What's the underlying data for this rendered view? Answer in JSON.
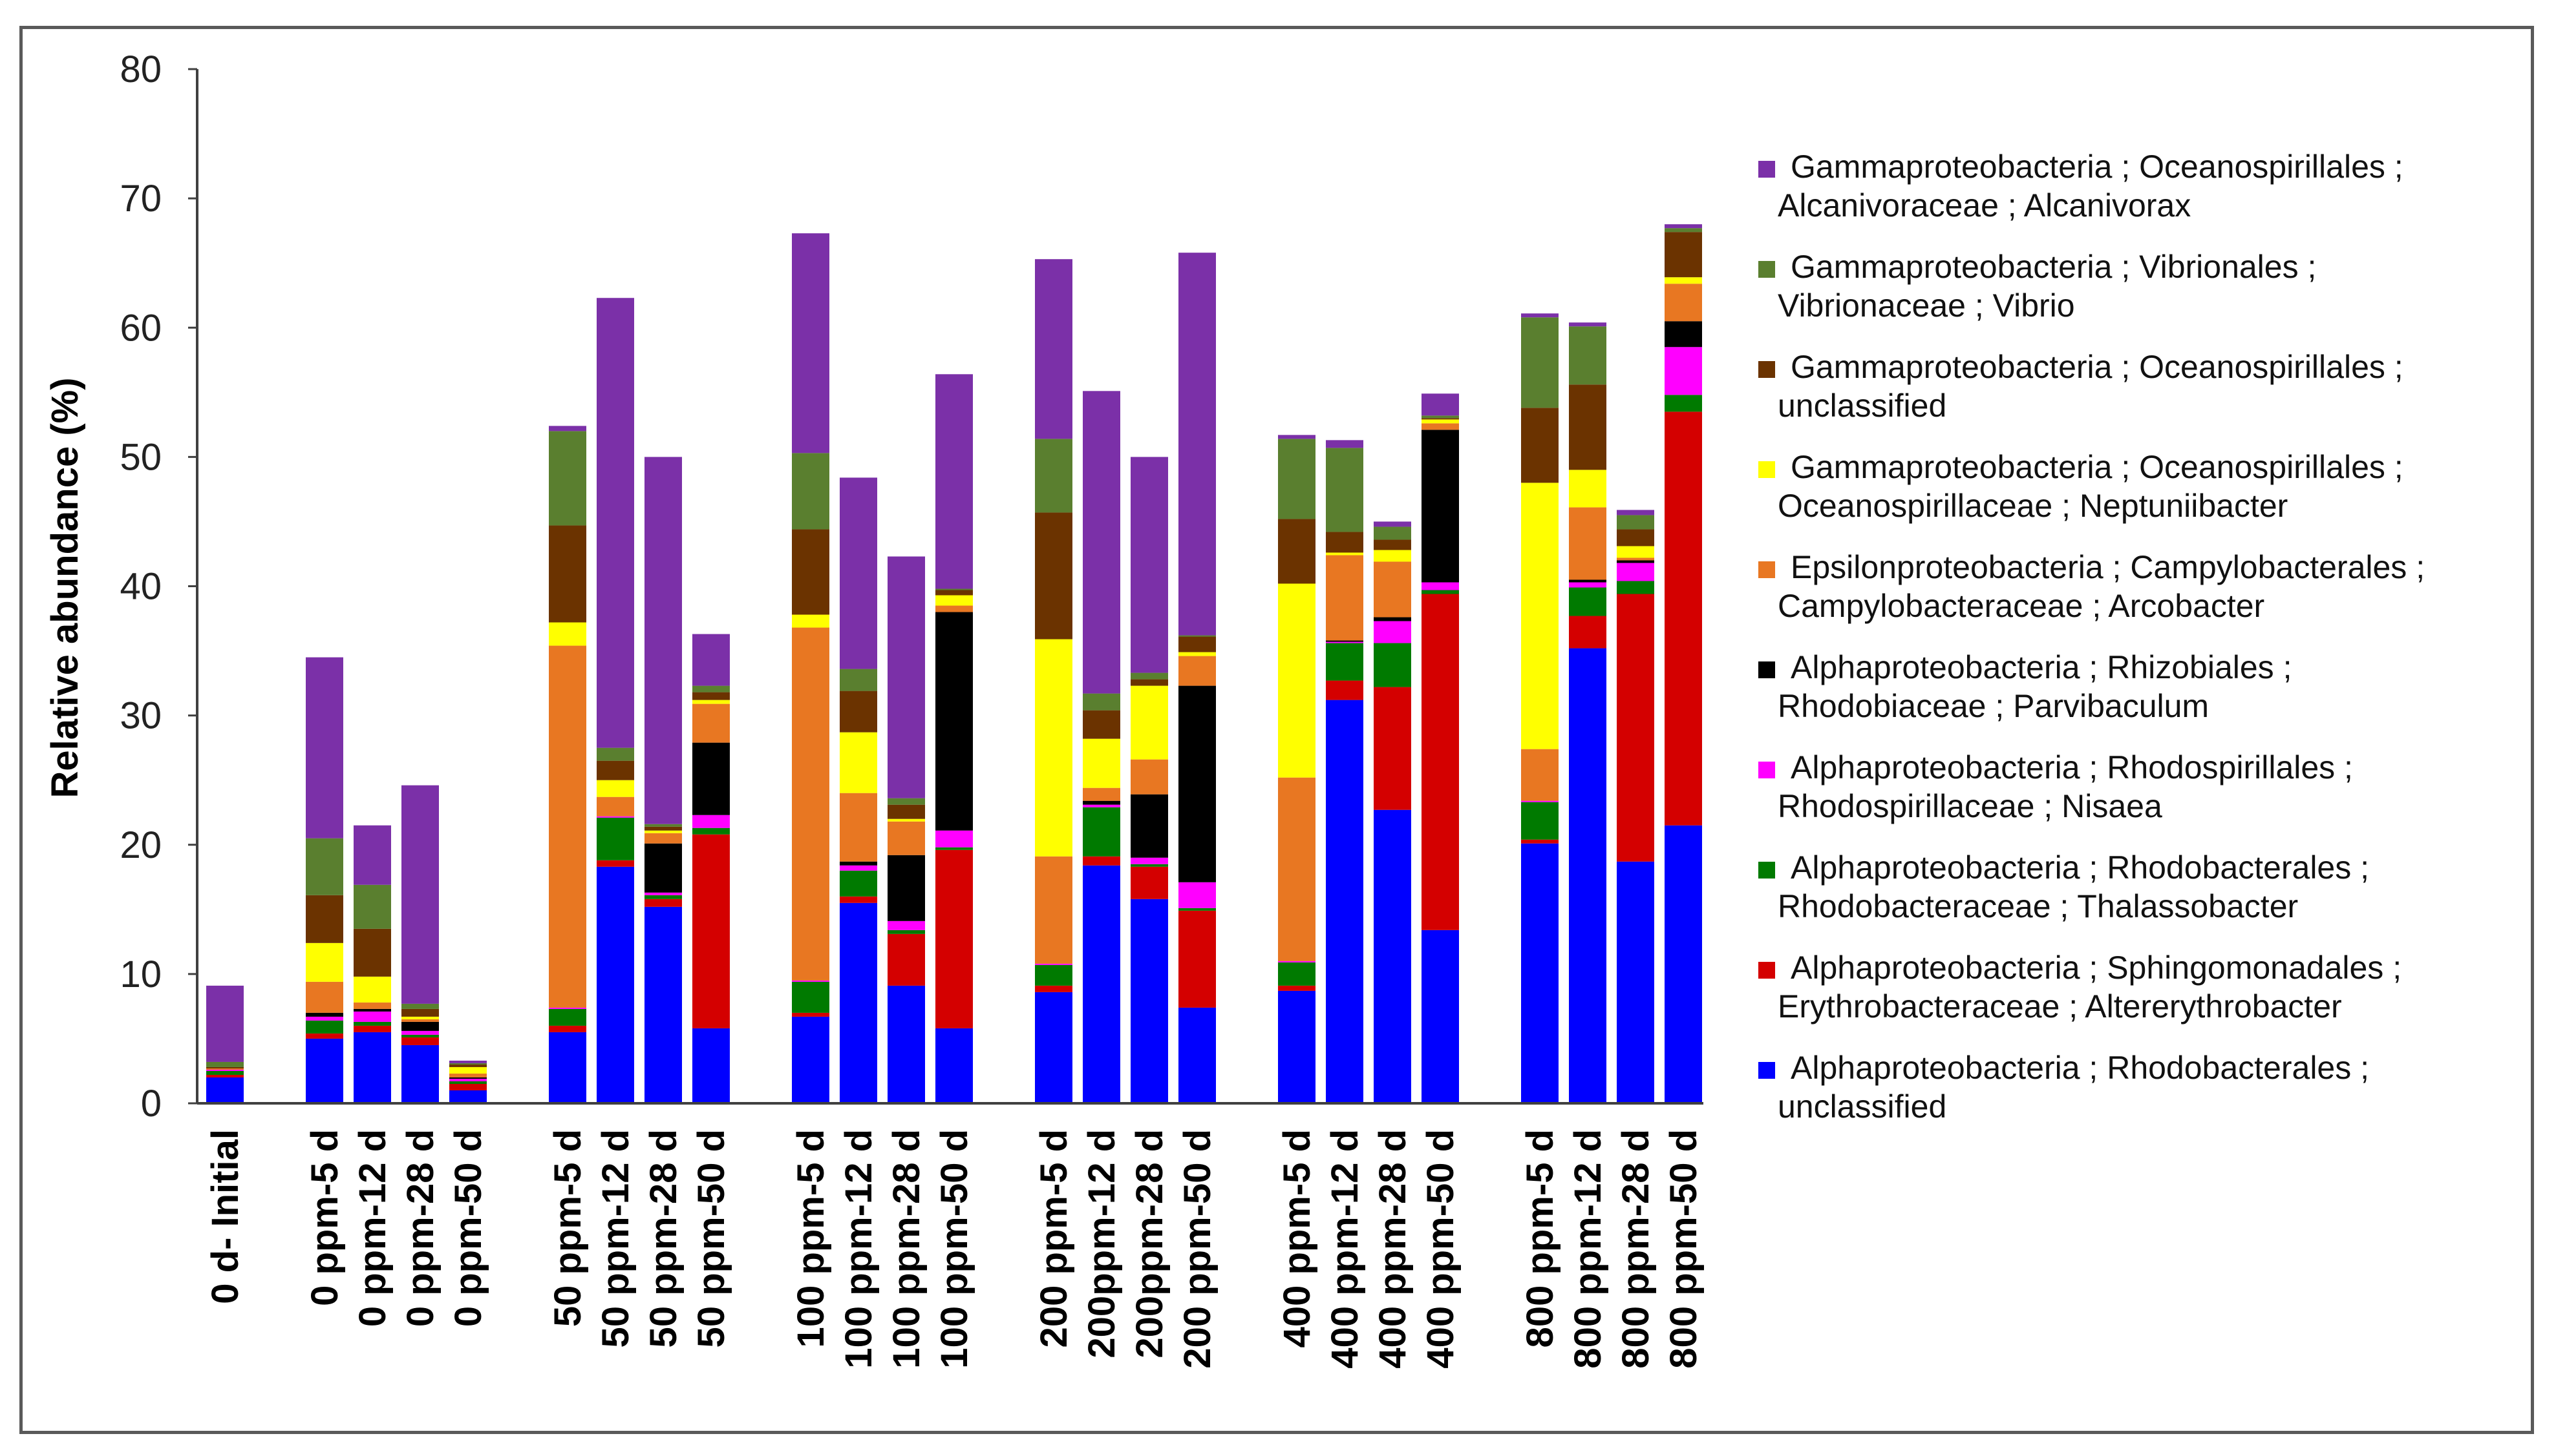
{
  "chart_data": {
    "type": "bar",
    "stacked": true,
    "title": "",
    "xlabel": "",
    "ylabel": "Relative abundance (%)",
    "ylim": [
      0,
      80
    ],
    "yticks": [
      0,
      10,
      20,
      30,
      40,
      50,
      60,
      70,
      80
    ],
    "categories": [
      "0 d- Initial",
      "0 ppm-5 d",
      "0 ppm-12 d",
      "0 ppm-28 d",
      "0 ppm-50 d",
      "50 ppm-5 d",
      "50 ppm-12 d",
      "50 ppm-28 d",
      "50 ppm-50 d",
      "100 ppm-5 d",
      "100 ppm-12 d",
      "100 ppm-28 d",
      "100 ppm-50 d",
      "200 ppm-5 d",
      "200ppm-12 d",
      "200ppm-28 d",
      "200 ppm-50 d",
      "400 ppm-5 d",
      "400 ppm-12 d",
      "400 ppm-28 d",
      "400 ppm-50 d",
      "800 ppm-5 d",
      "800 ppm-12 d",
      "800 ppm-28 d",
      "800 ppm-50 d"
    ],
    "groups": [
      [
        0
      ],
      [
        1,
        2,
        3,
        4
      ],
      [
        5,
        6,
        7,
        8
      ],
      [
        9,
        10,
        11,
        12
      ],
      [
        13,
        14,
        15,
        16
      ],
      [
        17,
        18,
        19,
        20
      ],
      [
        21,
        22,
        23,
        24
      ]
    ],
    "legend_position": "right",
    "series": [
      {
        "name": "Alphaproteobacteria ; Rhodobacterales ; unclassified",
        "line1": "Alphaproteobacteria ; Rhodobacterales ;",
        "line2": "unclassified",
        "color": "#0000ff",
        "values": [
          2.0,
          5.0,
          5.5,
          4.5,
          1.0,
          5.5,
          18.3,
          15.2,
          5.8,
          6.7,
          15.5,
          9.1,
          5.8,
          8.6,
          18.4,
          15.8,
          7.4,
          8.7,
          31.2,
          22.7,
          13.4,
          20.1,
          35.2,
          18.7,
          21.5
        ]
      },
      {
        "name": "Alphaproteobacteria ; Sphingomonadales ; Erythrobacteraceae ; Altererythrobacter",
        "line1": "Alphaproteobacteria ; Sphingomonadales ;",
        "line2": "Erythrobacteraceae ; Altererythrobacter",
        "color": "#d40000",
        "values": [
          0.2,
          0.4,
          0.5,
          0.6,
          0.5,
          0.5,
          0.5,
          0.6,
          15.0,
          0.3,
          0.5,
          4.0,
          13.8,
          0.5,
          0.7,
          2.5,
          7.5,
          0.4,
          1.5,
          9.5,
          26.0,
          0.3,
          2.5,
          20.7,
          32.0
        ]
      },
      {
        "name": "Alphaproteobacteria ; Rhodobacterales ; Rhodobacteraceae ; Thalassobacter",
        "line1": "Alphaproteobacteria ; Rhodobacterales ;",
        "line2": "Rhodobacteraceae ; Thalassobacter",
        "color": "#007a00",
        "values": [
          0.3,
          1.0,
          0.3,
          0.2,
          0.2,
          1.3,
          3.3,
          0.3,
          0.5,
          2.4,
          2.0,
          0.3,
          0.2,
          1.6,
          3.8,
          0.2,
          0.2,
          1.8,
          2.9,
          3.4,
          0.3,
          2.9,
          2.2,
          1.0,
          1.3
        ]
      },
      {
        "name": "Alphaproteobacteria ; Rhodospirillales ; Rhodospirillaceae ; Nisaea",
        "line1": "Alphaproteobacteria ; Rhodospirillales ;",
        "line2": "Rhodospirillaceae ; Nisaea",
        "color": "#ff00ff",
        "values": [
          0.1,
          0.3,
          0.8,
          0.3,
          0.2,
          0.1,
          0.1,
          0.2,
          1.0,
          0.1,
          0.4,
          0.7,
          1.3,
          0.1,
          0.2,
          0.5,
          2.0,
          0.1,
          0.1,
          1.7,
          0.6,
          0.1,
          0.4,
          1.4,
          3.7
        ]
      },
      {
        "name": "Alphaproteobacteria ; Rhizobiales ; Rhodobiaceae ; Parvibaculum",
        "line1": "Alphaproteobacteria ; Rhizobiales ;",
        "line2": "Rhodobiaceae ; Parvibaculum",
        "color": "#000000",
        "values": [
          0.0,
          0.3,
          0.2,
          0.7,
          0.1,
          0.0,
          0.0,
          3.8,
          5.6,
          0.0,
          0.3,
          5.1,
          16.9,
          0.0,
          0.3,
          4.9,
          15.2,
          0.0,
          0.1,
          0.3,
          11.8,
          0.0,
          0.2,
          0.2,
          2.0
        ]
      },
      {
        "name": "Epsilonproteobacteria ; Campylobacterales ; Campylobacteraceae ; Arcobacter",
        "line1": "Epsilonproteobacteria ; Campylobacterales ;",
        "line2": "Campylobacteraceae ; Arcobacter",
        "color": "#e87722",
        "values": [
          0.1,
          2.4,
          0.5,
          0.2,
          0.3,
          28.0,
          1.5,
          0.8,
          3.0,
          27.3,
          5.3,
          2.6,
          0.5,
          8.3,
          1.0,
          2.7,
          2.3,
          14.2,
          6.6,
          4.3,
          0.5,
          4.0,
          5.6,
          0.2,
          2.9
        ]
      },
      {
        "name": "Gammaproteobacteria ; Oceanospirillales ; Oceanospirillaceae ; Neptuniibacter",
        "line1": "Gammaproteobacteria ; Oceanospirillales ;",
        "line2": "Oceanospirillaceae ; Neptuniibacter",
        "color": "#ffff00",
        "values": [
          0.0,
          3.0,
          2.0,
          0.2,
          0.5,
          1.8,
          1.3,
          0.2,
          0.3,
          1.0,
          4.7,
          0.2,
          0.8,
          16.8,
          3.8,
          5.7,
          0.3,
          15.0,
          0.2,
          0.9,
          0.3,
          20.6,
          2.9,
          0.9,
          0.5
        ]
      },
      {
        "name": "Gammaproteobacteria ; Oceanospirillales ; unclassified",
        "line1": "Gammaproteobacteria ; Oceanospirillales ;",
        "line2": "unclassified",
        "color": "#6b3300",
        "values": [
          0.1,
          3.7,
          3.7,
          0.6,
          0.2,
          7.5,
          1.5,
          0.3,
          0.6,
          6.6,
          3.2,
          1.1,
          0.4,
          9.8,
          2.2,
          0.5,
          1.2,
          5.0,
          1.6,
          0.8,
          0.1,
          5.8,
          6.6,
          1.3,
          3.5
        ]
      },
      {
        "name": "Gammaproteobacteria ; Vibrionales ; Vibrionaceae ; Vibrio",
        "line1": "Gammaproteobacteria ; Vibrionales ;",
        "line2": "Vibrionaceae ; Vibrio",
        "color": "#5a7f2f",
        "values": [
          0.4,
          4.4,
          3.4,
          0.4,
          0.1,
          7.3,
          1.0,
          0.2,
          0.5,
          5.9,
          1.7,
          0.5,
          0.1,
          5.7,
          1.3,
          0.5,
          0.1,
          6.2,
          6.5,
          1.0,
          0.2,
          7.0,
          4.5,
          1.1,
          0.3
        ]
      },
      {
        "name": "Gammaproteobacteria ; Oceanospirillales ; Alcanivoraceae ; Alcanivorax",
        "line1": "Gammaproteobacteria ; Oceanospirillales ;",
        "line2": "Alcanivoraceae ; Alcanivorax",
        "color": "#7b30a8",
        "values": [
          5.9,
          14.0,
          4.6,
          16.9,
          0.2,
          0.4,
          34.8,
          28.4,
          4.0,
          17.0,
          14.8,
          18.7,
          16.6,
          13.9,
          23.4,
          16.7,
          29.6,
          0.3,
          0.6,
          0.4,
          1.7,
          0.3,
          0.3,
          0.4,
          0.3
        ]
      }
    ]
  }
}
